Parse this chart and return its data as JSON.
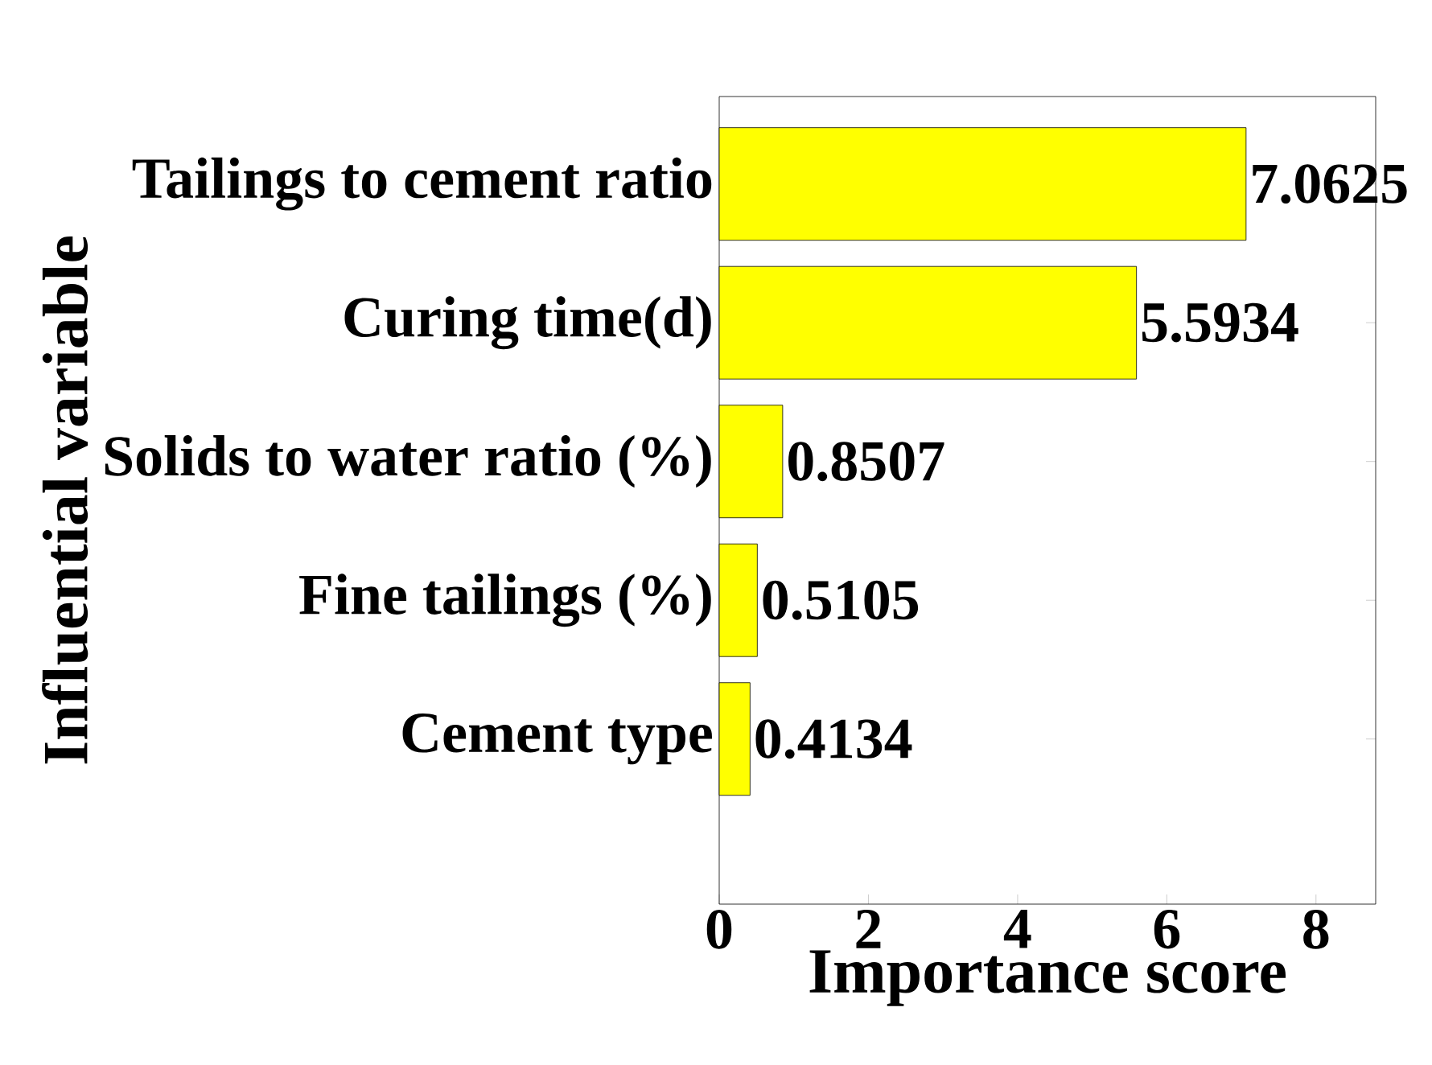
{
  "chart_data": {
    "type": "bar",
    "orientation": "horizontal",
    "categories": [
      "Tailings to cement ratio",
      "Curing time(d)",
      "Solids to water ratio (%)",
      "Fine tailings (%)",
      "Cement type"
    ],
    "values": [
      7.0625,
      5.5934,
      0.8507,
      0.5105,
      0.4134
    ],
    "color": "#ffff00",
    "xlim": [
      0,
      8.8
    ],
    "xticks": [
      0,
      2,
      4,
      6,
      8
    ],
    "xlabel": "Importance score",
    "ylabel": "Influential variable",
    "data_labels": true
  }
}
